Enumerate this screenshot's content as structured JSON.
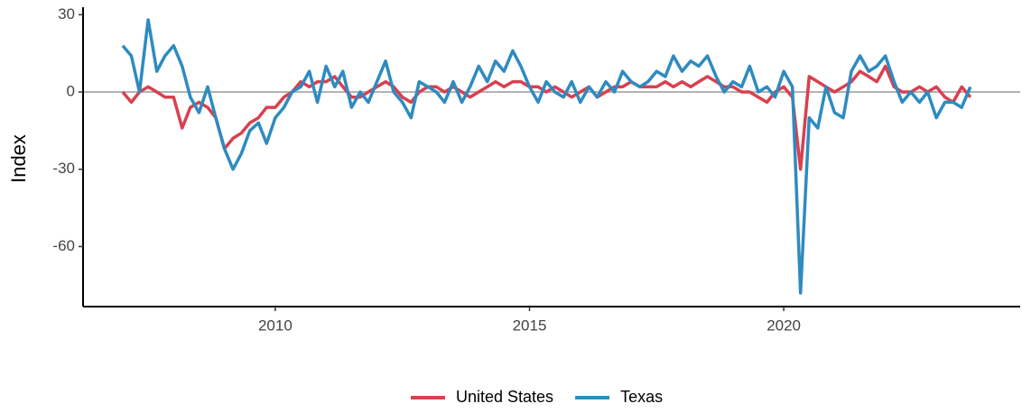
{
  "chart_data": {
    "type": "line",
    "y_label": "Index",
    "x": [
      2007,
      2007.17,
      2007.33,
      2007.5,
      2007.67,
      2007.83,
      2008,
      2008.17,
      2008.33,
      2008.5,
      2008.67,
      2008.83,
      2009,
      2009.17,
      2009.33,
      2009.5,
      2009.67,
      2009.83,
      2010,
      2010.17,
      2010.33,
      2010.5,
      2010.67,
      2010.83,
      2011,
      2011.17,
      2011.33,
      2011.5,
      2011.67,
      2011.83,
      2012,
      2012.17,
      2012.33,
      2012.5,
      2012.67,
      2012.83,
      2013,
      2013.17,
      2013.33,
      2013.5,
      2013.67,
      2013.83,
      2014,
      2014.17,
      2014.33,
      2014.5,
      2014.67,
      2014.83,
      2015,
      2015.17,
      2015.33,
      2015.5,
      2015.67,
      2015.83,
      2016,
      2016.17,
      2016.33,
      2016.5,
      2016.67,
      2016.83,
      2017,
      2017.17,
      2017.33,
      2017.5,
      2017.67,
      2017.83,
      2018,
      2018.17,
      2018.33,
      2018.5,
      2018.67,
      2018.83,
      2019,
      2019.17,
      2019.33,
      2019.5,
      2019.67,
      2019.83,
      2020,
      2020.17,
      2020.33,
      2020.5,
      2020.67,
      2020.83,
      2021,
      2021.17,
      2021.33,
      2021.5,
      2021.67,
      2021.83,
      2022,
      2022.17,
      2022.33,
      2022.5,
      2022.67,
      2022.83,
      2023,
      2023.17,
      2023.33,
      2023.5,
      2023.67
    ],
    "series": [
      {
        "name": "United States",
        "color": "#d9404f",
        "values": [
          0,
          -4,
          0,
          2,
          0,
          -2,
          -2,
          -14,
          -6,
          -4,
          -6,
          -10,
          -22,
          -18,
          -16,
          -12,
          -10,
          -6,
          -6,
          -2,
          0,
          4,
          2,
          4,
          4,
          6,
          2,
          -2,
          -2,
          0,
          2,
          4,
          2,
          -2,
          -4,
          0,
          2,
          2,
          0,
          2,
          0,
          -2,
          0,
          2,
          4,
          2,
          4,
          4,
          2,
          2,
          0,
          2,
          0,
          -2,
          0,
          2,
          -2,
          0,
          2,
          2,
          4,
          2,
          2,
          2,
          4,
          2,
          4,
          2,
          4,
          6,
          4,
          2,
          2,
          0,
          0,
          -2,
          -4,
          0,
          2,
          -2,
          -30,
          6,
          4,
          2,
          0,
          2,
          4,
          8,
          6,
          4,
          10,
          2,
          0,
          0,
          2,
          0,
          2,
          -2,
          -4,
          2,
          -2
        ]
      },
      {
        "name": "Texas",
        "color": "#2e8bc0",
        "values": [
          18,
          14,
          0,
          28,
          8,
          14,
          18,
          10,
          -2,
          -8,
          2,
          -10,
          -22,
          -30,
          -24,
          -15,
          -12,
          -20,
          -10,
          -6,
          0,
          2,
          8,
          -4,
          10,
          2,
          8,
          -6,
          0,
          -4,
          4,
          12,
          0,
          -4,
          -10,
          4,
          2,
          0,
          -4,
          4,
          -4,
          2,
          10,
          4,
          12,
          8,
          16,
          10,
          2,
          -4,
          4,
          0,
          -2,
          4,
          -4,
          2,
          -2,
          4,
          0,
          8,
          4,
          2,
          4,
          8,
          6,
          14,
          8,
          12,
          10,
          14,
          6,
          0,
          4,
          2,
          10,
          0,
          2,
          -2,
          8,
          2,
          -78,
          -10,
          -14,
          2,
          -8,
          -10,
          8,
          14,
          8,
          10,
          14,
          4,
          -4,
          0,
          -4,
          0,
          -10,
          -4,
          -4,
          -6,
          2
        ]
      }
    ],
    "reference_line": 0,
    "xlim": [
      2006.22,
      2024.65
    ],
    "ylim": [
      -83.3,
      31.5
    ],
    "xticks": [
      2010,
      2015,
      2020
    ],
    "yticks": [
      -60,
      -30,
      0,
      30
    ],
    "legend": "bottom"
  }
}
